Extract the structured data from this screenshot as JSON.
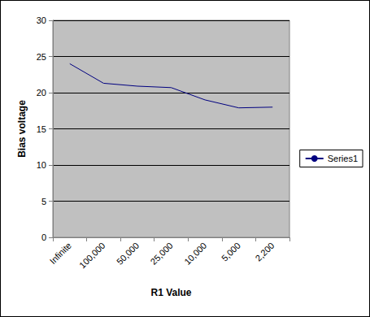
{
  "chart_data": {
    "type": "line",
    "x_label": "R1 Value",
    "y_label": "Bias voltage",
    "categories": [
      "Infinite",
      "100,000",
      "50,000",
      "25,000",
      "10,000",
      "5,000",
      "2,200"
    ],
    "series": [
      {
        "name": "Series1",
        "color": "#000080",
        "values": [
          24,
          21.3,
          20.9,
          20.7,
          19.0,
          17.9,
          18.0
        ]
      }
    ],
    "ylim": [
      0,
      30
    ],
    "yticks": [
      0,
      5,
      10,
      15,
      20,
      25,
      30
    ],
    "grid": true,
    "legend": "right"
  }
}
